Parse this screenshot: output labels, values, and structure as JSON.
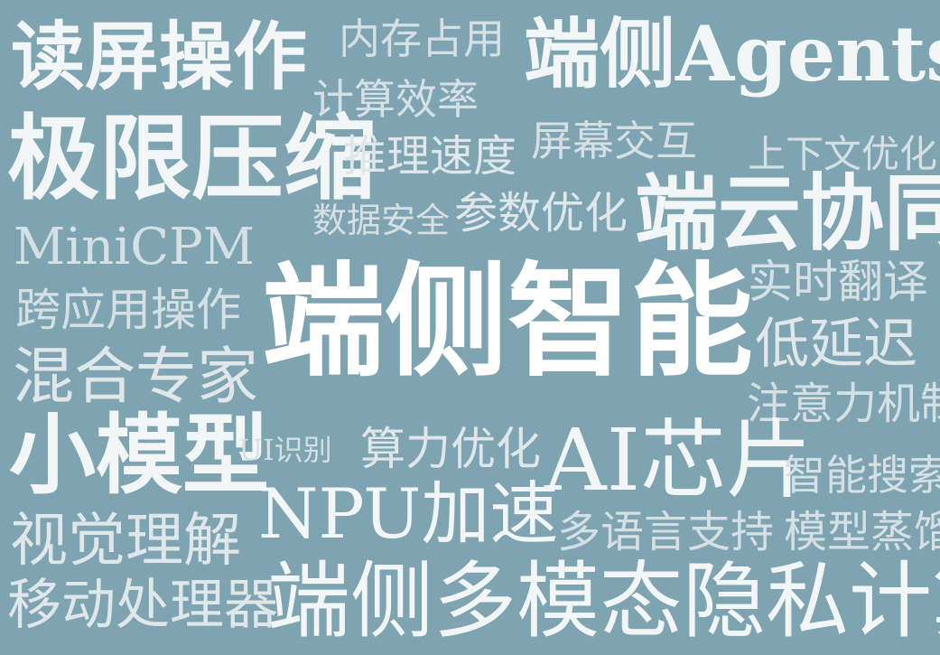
{
  "cloud": {
    "background_color": "#7fa4b1",
    "text_color": "#e9eef0",
    "main_text_color": "#ffffff",
    "words": [
      {
        "text": "读屏操作"
      },
      {
        "text": "内存占用"
      },
      {
        "text": "端侧Agents"
      },
      {
        "text": "计算效率"
      },
      {
        "text": "极限压缩"
      },
      {
        "text": "推理速度"
      },
      {
        "text": "屏幕交互"
      },
      {
        "text": "上下文优化"
      },
      {
        "text": "数据安全"
      },
      {
        "text": "参数优化"
      },
      {
        "text": "端云协同"
      },
      {
        "text": "MiniCPM"
      },
      {
        "text": "端侧智能"
      },
      {
        "text": "实时翻译"
      },
      {
        "text": "跨应用操作"
      },
      {
        "text": "低延迟"
      },
      {
        "text": "混合专家"
      },
      {
        "text": "注意力机制"
      },
      {
        "text": "小模型"
      },
      {
        "text": "UI识别"
      },
      {
        "text": "算力优化"
      },
      {
        "text": "AI芯片"
      },
      {
        "text": "智能搜索"
      },
      {
        "text": "NPU加速"
      },
      {
        "text": "视觉理解"
      },
      {
        "text": "多语言支持"
      },
      {
        "text": "模型蒸馏"
      },
      {
        "text": "移动处理器"
      },
      {
        "text": "端侧多模态隐私计算"
      }
    ]
  }
}
